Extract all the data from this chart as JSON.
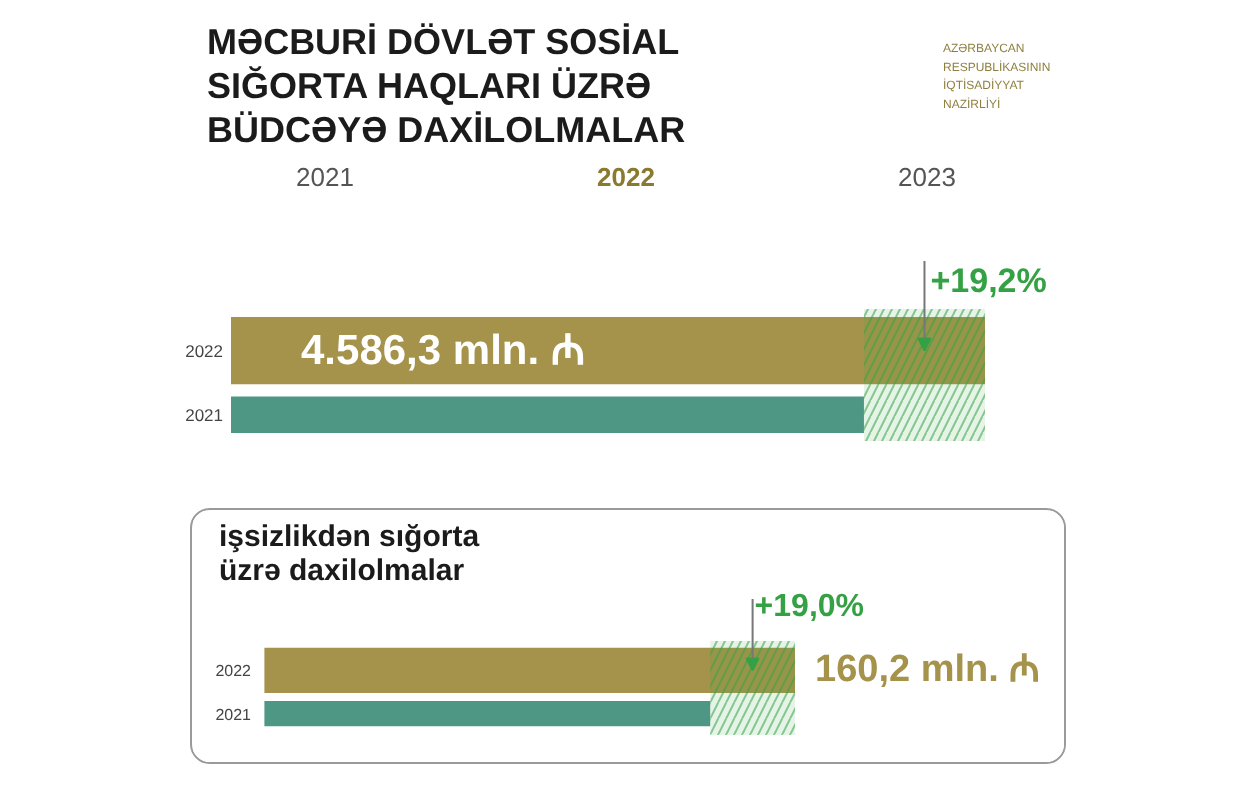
{
  "chart_data": [
    {
      "type": "bar",
      "orientation": "horizontal",
      "title": "MƏCBURİ DÖVLƏT SOSİAL SIĞORTA HAQLARI ÜZRƏ BÜDCƏYƏ DAXİLOLMALAR",
      "categories": [
        "2022",
        "2021"
      ],
      "values": [
        4586.3,
        3850
      ],
      "colors": [
        "#a6934b",
        "#4d9784"
      ],
      "value_labels": [
        "4.586,3 mln. ₼",
        null
      ],
      "bands": [
        {
          "axis": "x",
          "from": 3850,
          "to": 4586.3,
          "label": "+19,2%",
          "color": "#34a244"
        }
      ],
      "annotations": [
        "AZƏRBAYCAN RESPUBLİKASININ İQTİSADİYYAT NAZİRLİYİ",
        "2021",
        "2022",
        "2023"
      ]
    },
    {
      "type": "bar",
      "orientation": "horizontal",
      "title": "işsizlikdən sığorta üzrə daxilolmalar",
      "categories": [
        "2022",
        "2021"
      ],
      "values": [
        160.2,
        134.6
      ],
      "colors": [
        "#a6934b",
        "#4d9784"
      ],
      "value_labels": [
        "160,2 mln. ₼",
        null
      ],
      "bands": [
        {
          "axis": "x",
          "from": 134.6,
          "to": 160.2,
          "label": "+19,0%",
          "color": "#34a244"
        }
      ]
    }
  ]
}
